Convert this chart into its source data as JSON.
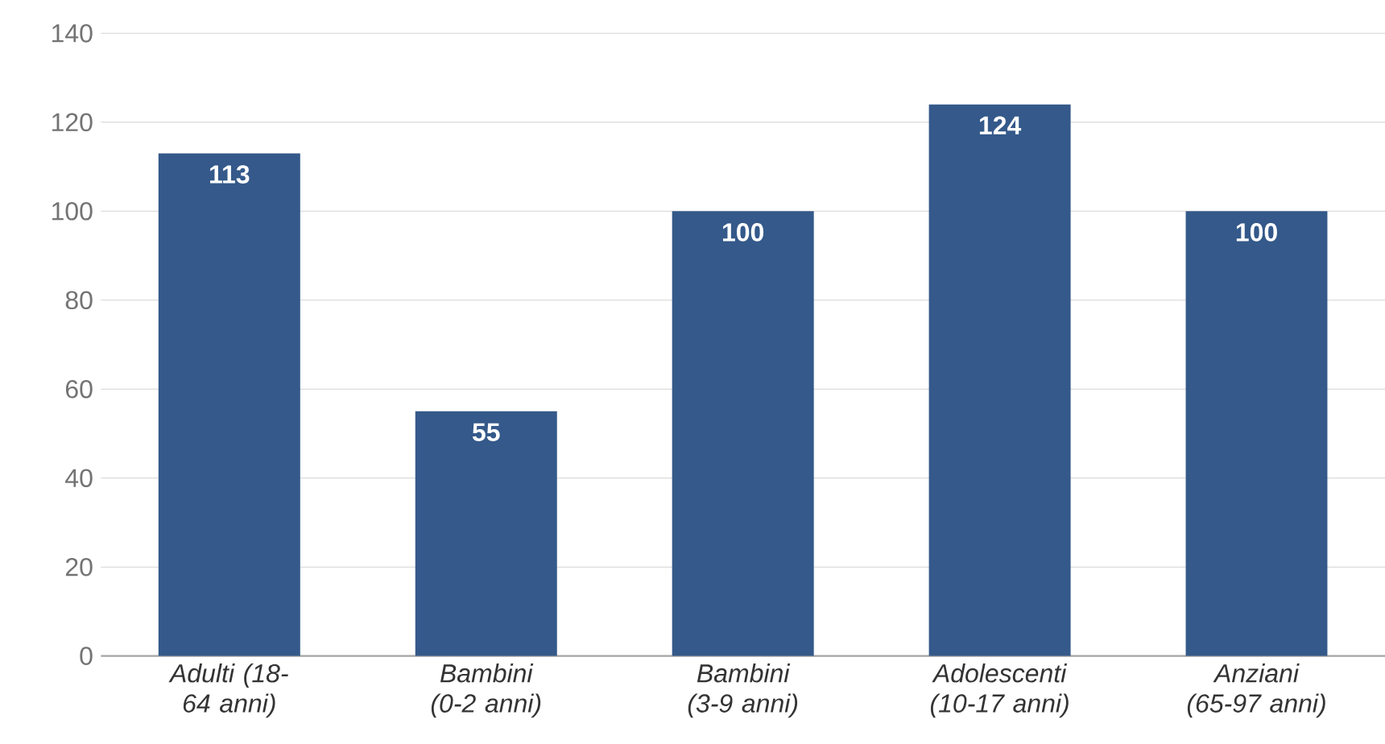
{
  "chart_data": {
    "type": "bar",
    "categories": [
      "Adulti (18-64 anni)",
      "Bambini (0-2 anni)",
      "Bambini (3-9 anni)",
      "Adolescenti (10-17 anni)",
      "Anziani (65-97 anni)"
    ],
    "values": [
      113,
      55,
      100,
      124,
      100
    ],
    "color": "#34598a",
    "ylim": [
      0,
      140
    ],
    "yticks": [
      0,
      20,
      40,
      60,
      80,
      100,
      120,
      140
    ],
    "grid": "y",
    "data_labels": true
  }
}
